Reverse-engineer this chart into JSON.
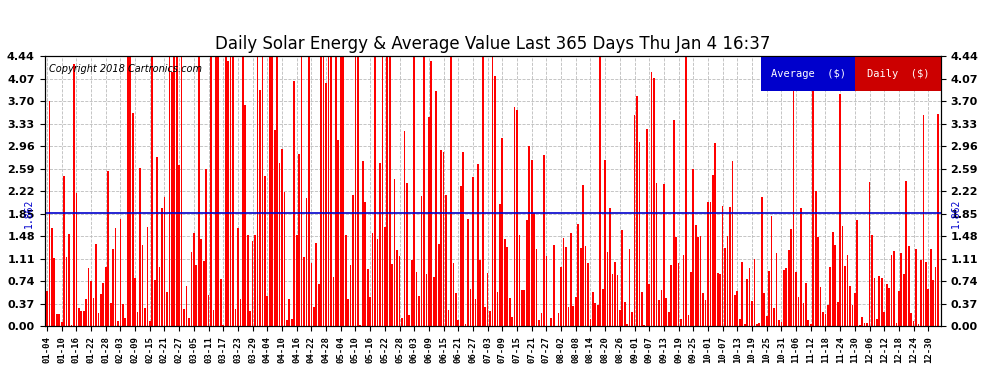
{
  "title": "Daily Solar Energy & Average Value Last 365 Days Thu Jan 4 16:37",
  "copyright": "Copyright 2018 Cartronics.com",
  "average_value": 1.862,
  "ylim": [
    0.0,
    4.44
  ],
  "yticks": [
    0.0,
    0.37,
    0.74,
    1.11,
    1.48,
    1.85,
    2.22,
    2.59,
    2.96,
    3.33,
    3.7,
    4.07,
    4.44
  ],
  "bar_color": "#ff0000",
  "avg_line_color": "#0000cc",
  "background_color": "#ffffff",
  "plot_bg_color": "#ffffff",
  "grid_color": "#bbbbbb",
  "title_fontsize": 12,
  "legend_avg_bg": "#0000cc",
  "legend_daily_bg": "#cc0000",
  "x_labels": [
    "01-04",
    "01-10",
    "01-16",
    "01-22",
    "01-28",
    "02-03",
    "02-09",
    "02-15",
    "02-21",
    "02-27",
    "03-05",
    "03-11",
    "03-17",
    "03-23",
    "03-29",
    "04-04",
    "04-10",
    "04-16",
    "04-22",
    "04-28",
    "05-04",
    "05-10",
    "05-16",
    "05-22",
    "05-28",
    "06-03",
    "06-09",
    "06-15",
    "06-21",
    "06-27",
    "07-03",
    "07-09",
    "07-15",
    "07-21",
    "07-27",
    "08-02",
    "08-08",
    "08-14",
    "08-20",
    "08-26",
    "09-01",
    "09-07",
    "09-13",
    "09-19",
    "09-25",
    "10-01",
    "10-07",
    "10-13",
    "10-19",
    "10-25",
    "10-31",
    "11-06",
    "11-12",
    "11-18",
    "11-24",
    "11-30",
    "12-06",
    "12-12",
    "12-18",
    "12-24",
    "12-30"
  ],
  "seed": 42,
  "n_bars": 365
}
